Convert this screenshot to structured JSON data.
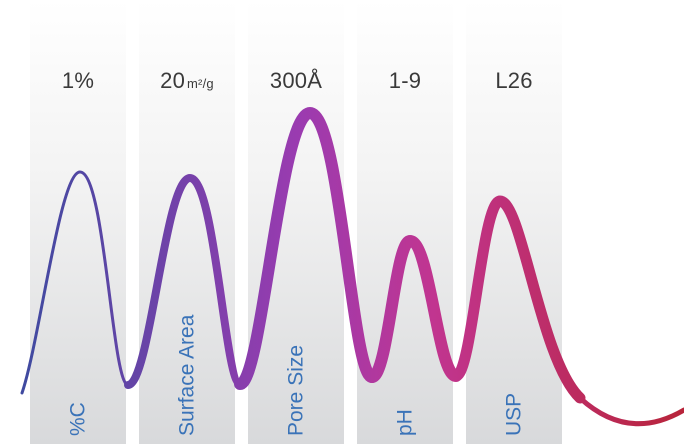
{
  "properties": [
    {
      "label": "%C",
      "value": "1%",
      "unit": ""
    },
    {
      "label": "Surface Area",
      "value": "20",
      "unit": "m²/g"
    },
    {
      "label": "Pore Size",
      "value": "300Å",
      "unit": ""
    },
    {
      "label": "pH",
      "value": "1-9",
      "unit": ""
    },
    {
      "label": "USP",
      "value": "L26",
      "unit": ""
    }
  ],
  "colors": {
    "label_text": "#3a73b8",
    "value_text": "#3a3a3a",
    "wave_start": "#3f4aa0",
    "wave_mid": "#9b3bb0",
    "wave_pink": "#c13590",
    "wave_end": "#b8243a"
  }
}
